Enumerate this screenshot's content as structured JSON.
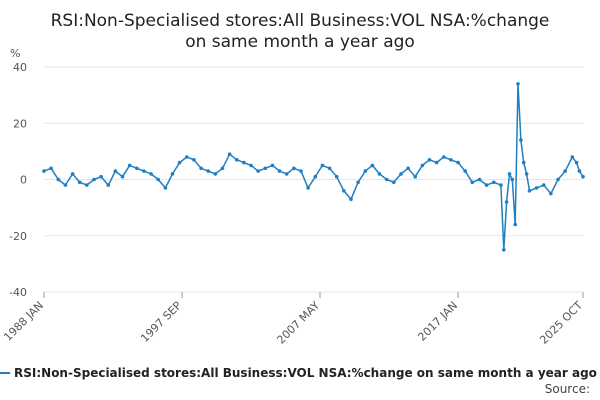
{
  "chart_data": {
    "type": "line",
    "title_line1": "RSI:Non-Specialised stores:All Business:VOL NSA:%change",
    "title_line2": "on same month a year ago",
    "ylabel": "%",
    "ylim": [
      -40,
      40
    ],
    "y_ticks": [
      "40",
      "20",
      "0",
      "-20",
      "-40"
    ],
    "x_ticks": [
      {
        "label": "1988 JAN",
        "t": 1988.0
      },
      {
        "label": "1997 SEP",
        "t": 1997.67
      },
      {
        "label": "2007 MAY",
        "t": 2007.33
      },
      {
        "label": "2017 JAN",
        "t": 2017.0
      },
      {
        "label": "2025 OCT",
        "t": 2025.75
      }
    ],
    "xlim": [
      1988.0,
      2025.75
    ],
    "grid": true,
    "legend": "top-left-below",
    "series": [
      {
        "name": "RSI:Non-Specialised stores:All Business:VOL NSA:%change on same month a year ago",
        "color": "#1f7fc0",
        "points": [
          [
            1988.0,
            3
          ],
          [
            1988.5,
            4
          ],
          [
            1989.0,
            0
          ],
          [
            1989.5,
            -2
          ],
          [
            1990.0,
            2
          ],
          [
            1990.5,
            -1
          ],
          [
            1991.0,
            -2
          ],
          [
            1991.5,
            0
          ],
          [
            1992.0,
            1
          ],
          [
            1992.5,
            -2
          ],
          [
            1993.0,
            3
          ],
          [
            1993.5,
            1
          ],
          [
            1994.0,
            5
          ],
          [
            1994.5,
            4
          ],
          [
            1995.0,
            3
          ],
          [
            1995.5,
            2
          ],
          [
            1996.0,
            0
          ],
          [
            1996.5,
            -3
          ],
          [
            1997.0,
            2
          ],
          [
            1997.5,
            6
          ],
          [
            1998.0,
            8
          ],
          [
            1998.5,
            7
          ],
          [
            1999.0,
            4
          ],
          [
            1999.5,
            3
          ],
          [
            2000.0,
            2
          ],
          [
            2000.5,
            4
          ],
          [
            2001.0,
            9
          ],
          [
            2001.5,
            7
          ],
          [
            2002.0,
            6
          ],
          [
            2002.5,
            5
          ],
          [
            2003.0,
            3
          ],
          [
            2003.5,
            4
          ],
          [
            2004.0,
            5
          ],
          [
            2004.5,
            3
          ],
          [
            2005.0,
            2
          ],
          [
            2005.5,
            4
          ],
          [
            2006.0,
            3
          ],
          [
            2006.5,
            -3
          ],
          [
            2007.0,
            1
          ],
          [
            2007.5,
            5
          ],
          [
            2008.0,
            4
          ],
          [
            2008.5,
            1
          ],
          [
            2009.0,
            -4
          ],
          [
            2009.5,
            -7
          ],
          [
            2010.0,
            -1
          ],
          [
            2010.5,
            3
          ],
          [
            2011.0,
            5
          ],
          [
            2011.5,
            2
          ],
          [
            2012.0,
            0
          ],
          [
            2012.5,
            -1
          ],
          [
            2013.0,
            2
          ],
          [
            2013.5,
            4
          ],
          [
            2014.0,
            1
          ],
          [
            2014.5,
            5
          ],
          [
            2015.0,
            7
          ],
          [
            2015.5,
            6
          ],
          [
            2016.0,
            8
          ],
          [
            2016.5,
            7
          ],
          [
            2017.0,
            6
          ],
          [
            2017.5,
            3
          ],
          [
            2018.0,
            -1
          ],
          [
            2018.5,
            0
          ],
          [
            2019.0,
            -2
          ],
          [
            2019.5,
            -1
          ],
          [
            2020.0,
            -2
          ],
          [
            2020.2,
            -25
          ],
          [
            2020.4,
            -8
          ],
          [
            2020.6,
            2
          ],
          [
            2020.8,
            0
          ],
          [
            2021.0,
            -16
          ],
          [
            2021.2,
            34
          ],
          [
            2021.4,
            14
          ],
          [
            2021.6,
            6
          ],
          [
            2021.8,
            2
          ],
          [
            2022.0,
            -4
          ],
          [
            2022.5,
            -3
          ],
          [
            2023.0,
            -2
          ],
          [
            2023.5,
            -5
          ],
          [
            2024.0,
            0
          ],
          [
            2024.5,
            3
          ],
          [
            2025.0,
            8
          ],
          [
            2025.3,
            6
          ],
          [
            2025.5,
            3
          ],
          [
            2025.75,
            1
          ]
        ]
      }
    ]
  },
  "legend_label": "RSI:Non-Specialised stores:All Business:VOL NSA:%change on same month a year ago",
  "source_label": "Source:"
}
